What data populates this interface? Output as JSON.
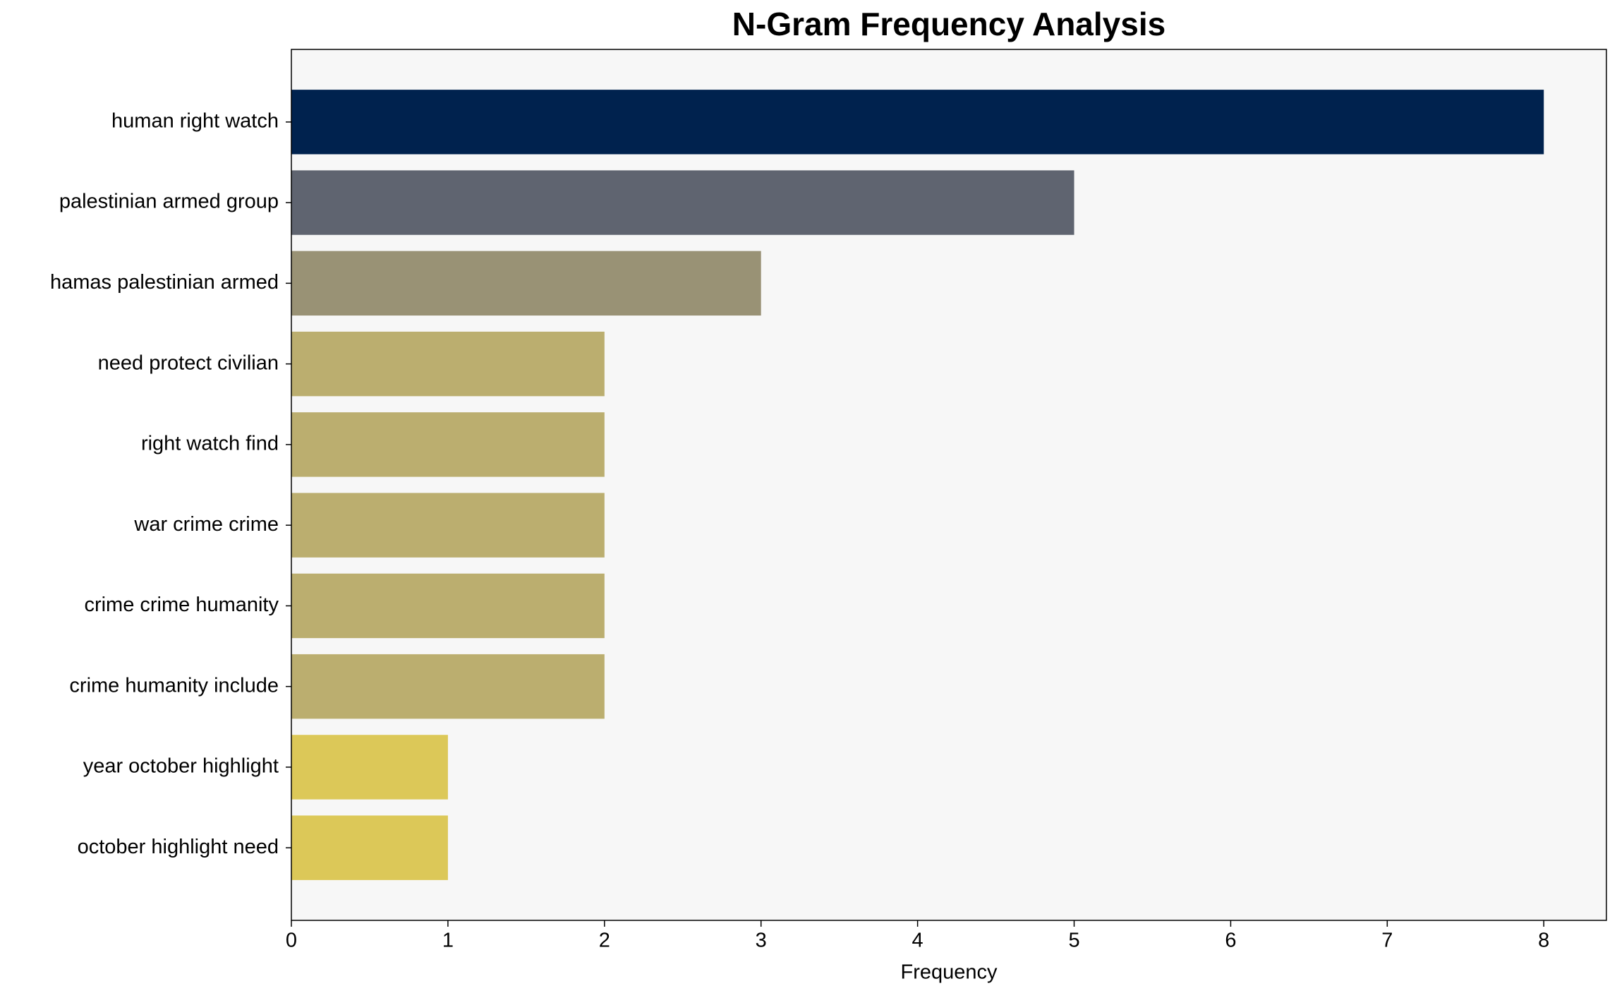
{
  "chart_data": {
    "type": "barh",
    "title": "N-Gram Frequency Analysis",
    "x_label": "Frequency",
    "categories": [
      "human right watch",
      "palestinian armed group",
      "hamas palestinian armed",
      "need protect civilian",
      "right watch find",
      "war crime crime",
      "crime crime humanity",
      "crime humanity include",
      "year october highlight",
      "october highlight need"
    ],
    "values": [
      8,
      5,
      3,
      2,
      2,
      2,
      2,
      2,
      1,
      1
    ],
    "colors": [
      "#00224e",
      "#5f6470",
      "#999275",
      "#bbae6f",
      "#bbae6f",
      "#bbae6f",
      "#bbae6f",
      "#bbae6f",
      "#dcc858",
      "#dcc858"
    ],
    "xlim": [
      0,
      8.4
    ],
    "xticks": [
      0,
      1,
      2,
      3,
      4,
      5,
      6,
      7,
      8
    ]
  }
}
